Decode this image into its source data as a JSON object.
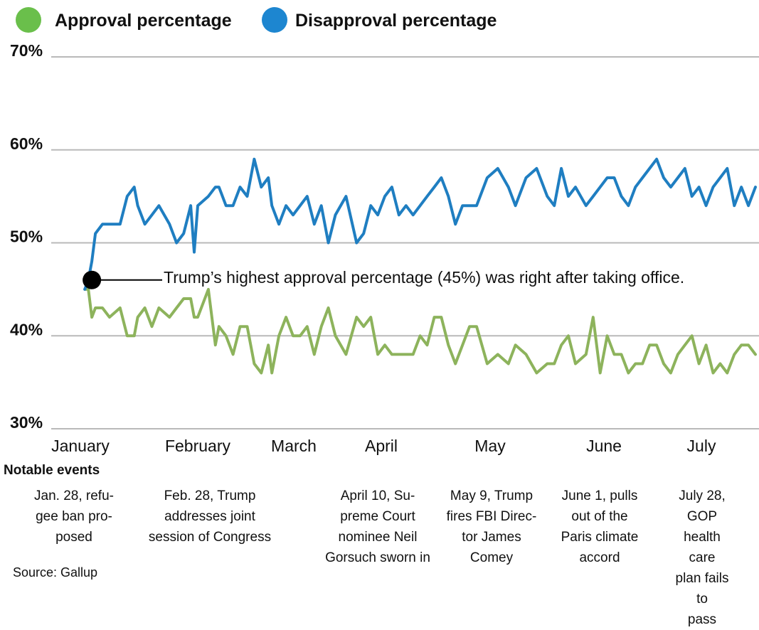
{
  "chart_data": {
    "type": "line",
    "title": "",
    "xlabel": "",
    "ylabel": "",
    "ylim": [
      30,
      70
    ],
    "yticks": [
      30,
      40,
      50,
      60,
      70
    ],
    "ytick_labels": [
      "30%",
      "40%",
      "50%",
      "60%",
      "70%"
    ],
    "grid": true,
    "legend_position": "top-left",
    "months": [
      "January",
      "February",
      "March",
      "April",
      "May",
      "June",
      "July"
    ],
    "series": [
      {
        "name": "Approval percentage",
        "color": "#8db35c",
        "legend_color": "#6abf4b",
        "x": [
          "2017-01-22",
          "2017-01-23",
          "2017-01-24",
          "2017-01-25",
          "2017-01-27",
          "2017-01-29",
          "2017-02-01",
          "2017-02-03",
          "2017-02-05",
          "2017-02-06",
          "2017-02-08",
          "2017-02-10",
          "2017-02-12",
          "2017-02-15",
          "2017-02-17",
          "2017-02-19",
          "2017-02-21",
          "2017-02-22",
          "2017-02-23",
          "2017-02-26",
          "2017-02-28",
          "2017-03-01",
          "2017-03-03",
          "2017-03-05",
          "2017-03-07",
          "2017-03-09",
          "2017-03-11",
          "2017-03-13",
          "2017-03-15",
          "2017-03-16",
          "2017-03-18",
          "2017-03-20",
          "2017-03-22",
          "2017-03-24",
          "2017-03-26",
          "2017-03-28",
          "2017-03-30",
          "2017-04-01",
          "2017-04-03",
          "2017-04-06",
          "2017-04-09",
          "2017-04-11",
          "2017-04-13",
          "2017-04-15",
          "2017-04-17",
          "2017-04-19",
          "2017-04-21",
          "2017-04-23",
          "2017-04-25",
          "2017-04-27",
          "2017-04-29",
          "2017-05-01",
          "2017-05-03",
          "2017-05-05",
          "2017-05-07",
          "2017-05-09",
          "2017-05-11",
          "2017-05-13",
          "2017-05-16",
          "2017-05-19",
          "2017-05-22",
          "2017-05-24",
          "2017-05-27",
          "2017-05-30",
          "2017-06-02",
          "2017-06-04",
          "2017-06-06",
          "2017-06-08",
          "2017-06-10",
          "2017-06-13",
          "2017-06-15",
          "2017-06-17",
          "2017-06-19",
          "2017-06-21",
          "2017-06-23",
          "2017-06-25",
          "2017-06-27",
          "2017-06-29",
          "2017-07-01",
          "2017-07-03",
          "2017-07-05",
          "2017-07-07",
          "2017-07-09",
          "2017-07-11",
          "2017-07-13",
          "2017-07-15",
          "2017-07-17",
          "2017-07-19",
          "2017-07-21",
          "2017-07-23",
          "2017-07-25",
          "2017-07-27",
          "2017-07-29",
          "2017-07-31"
        ],
        "values": [
          45,
          45,
          42,
          43,
          43,
          42,
          43,
          40,
          40,
          42,
          43,
          41,
          43,
          42,
          43,
          44,
          44,
          42,
          42,
          45,
          39,
          41,
          40,
          38,
          41,
          41,
          37,
          36,
          39,
          36,
          40,
          42,
          40,
          40,
          41,
          38,
          41,
          43,
          40,
          38,
          42,
          41,
          42,
          38,
          39,
          38,
          38,
          38,
          38,
          40,
          39,
          42,
          42,
          39,
          37,
          39,
          41,
          41,
          37,
          38,
          37,
          39,
          38,
          36,
          37,
          37,
          39,
          40,
          37,
          38,
          42,
          36,
          40,
          38,
          38,
          36,
          37,
          37,
          39,
          39,
          37,
          36,
          38,
          39,
          40,
          37,
          39,
          36,
          37,
          36,
          38,
          39,
          39,
          38
        ]
      },
      {
        "name": "Disapproval percentage",
        "color": "#1f7ec1",
        "legend_color": "#1d86d0",
        "x": [
          "2017-01-22",
          "2017-01-23",
          "2017-01-24",
          "2017-01-25",
          "2017-01-27",
          "2017-01-29",
          "2017-02-01",
          "2017-02-03",
          "2017-02-05",
          "2017-02-06",
          "2017-02-08",
          "2017-02-10",
          "2017-02-12",
          "2017-02-15",
          "2017-02-17",
          "2017-02-19",
          "2017-02-21",
          "2017-02-22",
          "2017-02-23",
          "2017-02-26",
          "2017-02-28",
          "2017-03-01",
          "2017-03-03",
          "2017-03-05",
          "2017-03-07",
          "2017-03-09",
          "2017-03-11",
          "2017-03-13",
          "2017-03-15",
          "2017-03-16",
          "2017-03-18",
          "2017-03-20",
          "2017-03-22",
          "2017-03-24",
          "2017-03-26",
          "2017-03-28",
          "2017-03-30",
          "2017-04-01",
          "2017-04-03",
          "2017-04-06",
          "2017-04-09",
          "2017-04-11",
          "2017-04-13",
          "2017-04-15",
          "2017-04-17",
          "2017-04-19",
          "2017-04-21",
          "2017-04-23",
          "2017-04-25",
          "2017-04-27",
          "2017-04-29",
          "2017-05-01",
          "2017-05-03",
          "2017-05-05",
          "2017-05-07",
          "2017-05-09",
          "2017-05-11",
          "2017-05-13",
          "2017-05-16",
          "2017-05-19",
          "2017-05-22",
          "2017-05-24",
          "2017-05-27",
          "2017-05-30",
          "2017-06-02",
          "2017-06-04",
          "2017-06-06",
          "2017-06-08",
          "2017-06-10",
          "2017-06-13",
          "2017-06-15",
          "2017-06-17",
          "2017-06-19",
          "2017-06-21",
          "2017-06-23",
          "2017-06-25",
          "2017-06-27",
          "2017-06-29",
          "2017-07-01",
          "2017-07-03",
          "2017-07-05",
          "2017-07-07",
          "2017-07-09",
          "2017-07-11",
          "2017-07-13",
          "2017-07-15",
          "2017-07-17",
          "2017-07-19",
          "2017-07-21",
          "2017-07-23",
          "2017-07-25",
          "2017-07-27",
          "2017-07-29",
          "2017-07-31"
        ],
        "values": [
          45,
          46,
          48,
          51,
          52,
          52,
          52,
          55,
          56,
          54,
          52,
          53,
          54,
          52,
          50,
          51,
          54,
          49,
          54,
          55,
          56,
          56,
          54,
          54,
          56,
          55,
          59,
          56,
          57,
          54,
          52,
          54,
          53,
          54,
          55,
          52,
          54,
          50,
          53,
          55,
          50,
          51,
          54,
          53,
          55,
          56,
          53,
          54,
          53,
          54,
          55,
          56,
          57,
          55,
          52,
          54,
          54,
          54,
          57,
          58,
          56,
          54,
          57,
          58,
          55,
          54,
          58,
          55,
          56,
          54,
          55,
          56,
          57,
          57,
          55,
          54,
          56,
          57,
          58,
          59,
          57,
          56,
          57,
          58,
          55,
          56,
          54,
          56,
          57,
          58,
          54,
          56,
          54,
          56
        ]
      }
    ],
    "annotation": {
      "text": "Trump’s highest approval percentage (45%) was right after taking office.",
      "x": "2017-01-24",
      "y": 46
    }
  },
  "legend": {
    "approval_label": "Approval percentage",
    "disapproval_label": "Disapproval percentage"
  },
  "events": {
    "heading": "Notable events",
    "items": [
      {
        "text": "Jan. 28, refu-\ngee ban pro-\nposed"
      },
      {
        "text": "Feb. 28, Trump\naddresses joint\nsession of Congress"
      },
      {
        "text": "April 10, Su-\npreme Court\nnominee Neil\nGorsuch sworn in"
      },
      {
        "text": "May 9, Trump\nfires FBI Direc-\ntor James\nComey"
      },
      {
        "text": "June 1, pulls\nout of the\nParis climate\naccord"
      },
      {
        "text": "July 28, GOP\nhealth care\nplan fails to\npass"
      }
    ]
  },
  "source": "Source: Gallup"
}
